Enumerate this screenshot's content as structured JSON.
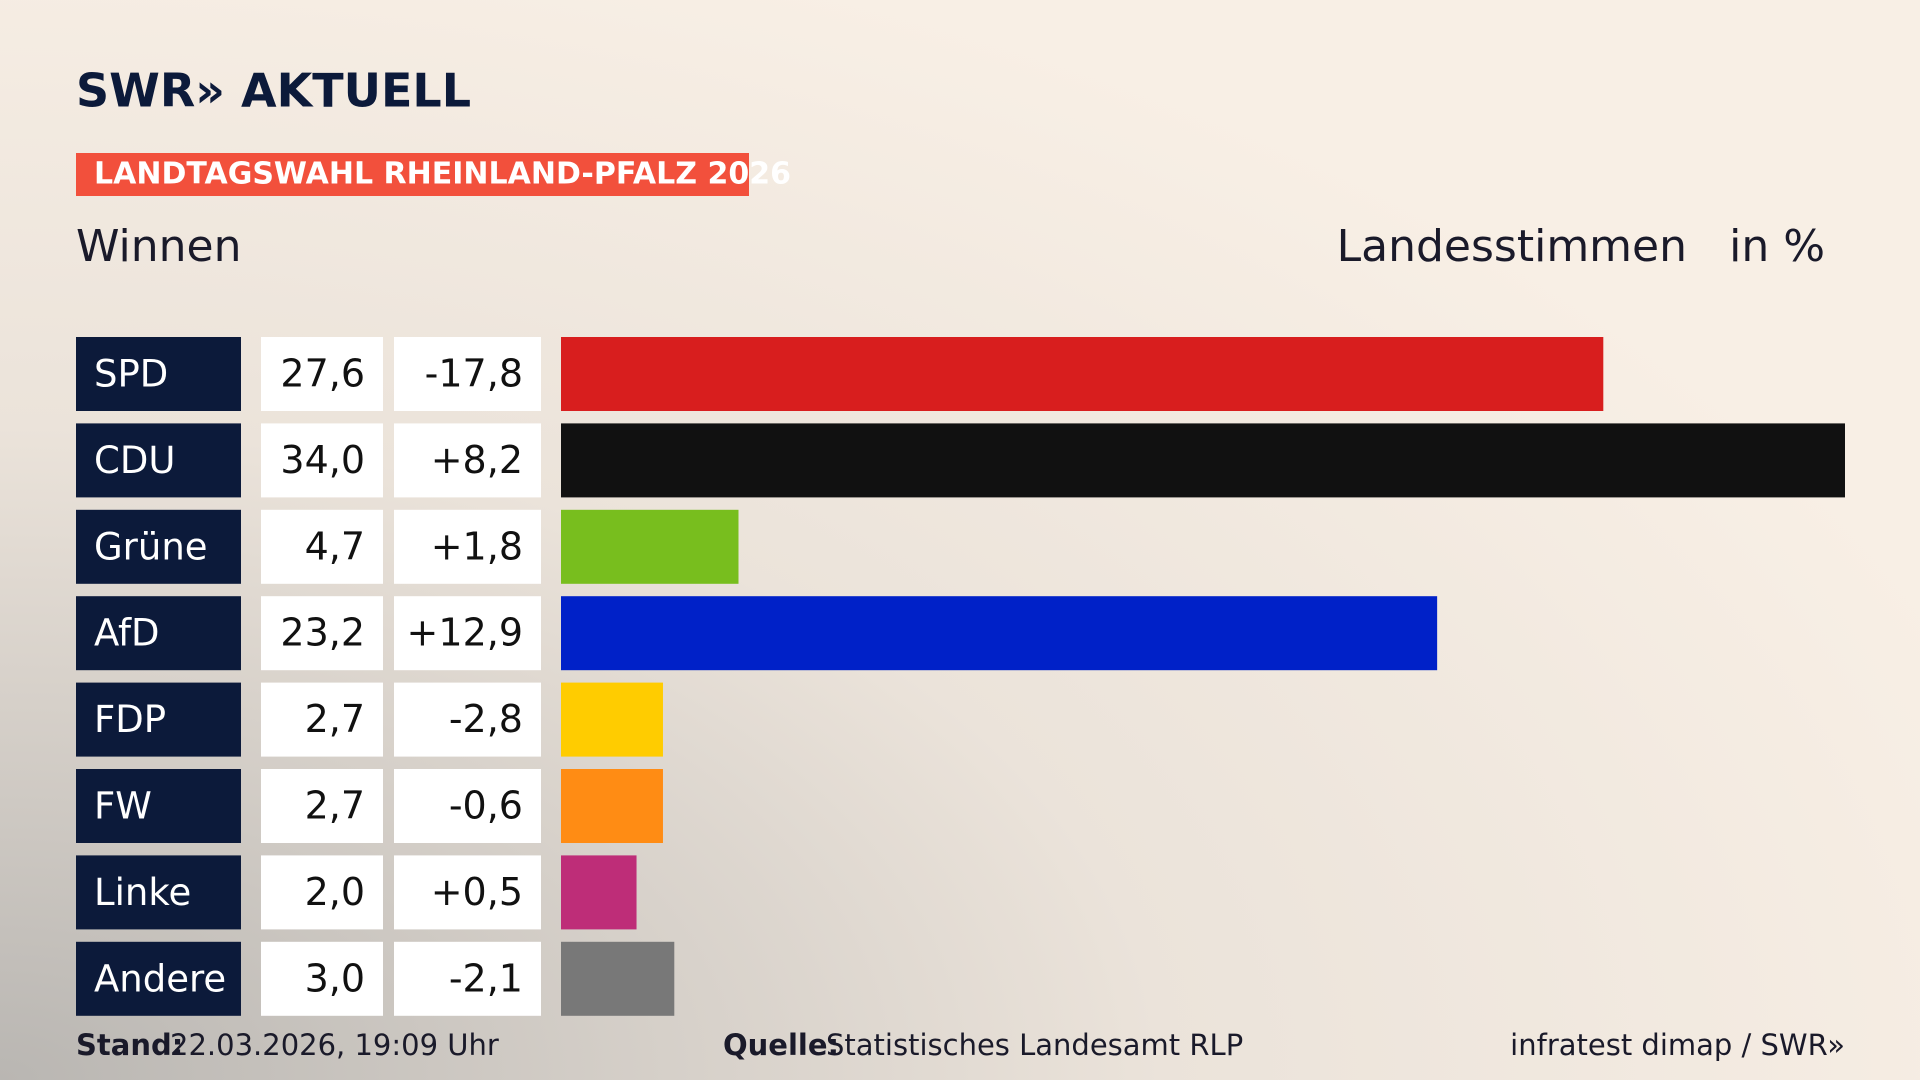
{
  "chart_data": {
    "type": "bar",
    "brand": "SWR» AKTUELL",
    "banner": "LANDTAGSWAHL RHEINLAND-PFALZ 2026",
    "title": "Winnen",
    "value_heading": "Landesstimmen",
    "unit_heading": "in %",
    "categories": [
      "SPD",
      "CDU",
      "Grüne",
      "AfD",
      "FDP",
      "FW",
      "Linke",
      "Andere"
    ],
    "values": [
      27.6,
      34.0,
      4.7,
      23.2,
      2.7,
      2.7,
      2.0,
      3.0
    ],
    "value_labels": [
      "27,6",
      "34,0",
      "4,7",
      "23,2",
      "2,7",
      "2,7",
      "2,0",
      "3,0"
    ],
    "changes": [
      "-17,8",
      "+8,2",
      "+1,8",
      "+12,9",
      "-2,8",
      "-0,6",
      "+0,5",
      "-2,1"
    ],
    "colors": [
      "#d81e1e",
      "#111111",
      "#78be1e",
      "#0021c8",
      "#ffcc00",
      "#ff8c14",
      "#be2d78",
      "#787878"
    ],
    "footer": {
      "stand_label": "Stand:",
      "stand": "22.03.2026, 19:09 Uhr",
      "source_label": "Quelle:",
      "source": "Statistisches Landesamt RLP",
      "credit": "infratest dimap / SWR»"
    }
  }
}
